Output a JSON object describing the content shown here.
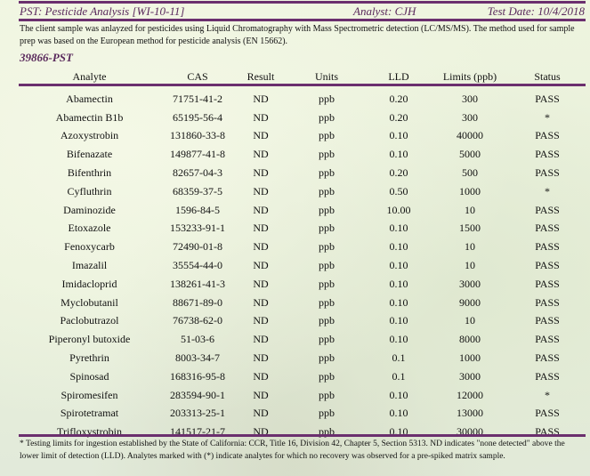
{
  "header": {
    "title": "PST: Pesticide Analysis [WI-10-11]",
    "analyst": "Analyst: CJH",
    "test_date": "Test Date: 10/4/2018"
  },
  "description": "The client sample was anlayzed for pesticides using Liquid Chromatography with Mass Spectrometric detection (LC/MS/MS).  The method used for sample prep was based on the European method for pesticide analysis (EN 15662).",
  "sample_id": "39866-PST",
  "columns": [
    "Analyte",
    "CAS",
    "Result",
    "Units",
    "LLD",
    "Limits (ppb)",
    "Status"
  ],
  "rows": [
    [
      "Abamectin",
      "71751-41-2",
      "ND",
      "ppb",
      "0.20",
      "300",
      "PASS"
    ],
    [
      "Abamectin B1b",
      "65195-56-4",
      "ND",
      "ppb",
      "0.20",
      "300",
      "*"
    ],
    [
      "Azoxystrobin",
      "131860-33-8",
      "ND",
      "ppb",
      "0.10",
      "40000",
      "PASS"
    ],
    [
      "Bifenazate",
      "149877-41-8",
      "ND",
      "ppb",
      "0.10",
      "5000",
      "PASS"
    ],
    [
      "Bifenthrin",
      "82657-04-3",
      "ND",
      "ppb",
      "0.20",
      "500",
      "PASS"
    ],
    [
      "Cyfluthrin",
      "68359-37-5",
      "ND",
      "ppb",
      "0.50",
      "1000",
      "*"
    ],
    [
      "Daminozide",
      "1596-84-5",
      "ND",
      "ppb",
      "10.00",
      "10",
      "PASS"
    ],
    [
      "Etoxazole",
      "153233-91-1",
      "ND",
      "ppb",
      "0.10",
      "1500",
      "PASS"
    ],
    [
      "Fenoxycarb",
      "72490-01-8",
      "ND",
      "ppb",
      "0.10",
      "10",
      "PASS"
    ],
    [
      "Imazalil",
      "35554-44-0",
      "ND",
      "ppb",
      "0.10",
      "10",
      "PASS"
    ],
    [
      "Imidacloprid",
      "138261-41-3",
      "ND",
      "ppb",
      "0.10",
      "3000",
      "PASS"
    ],
    [
      "Myclobutanil",
      "88671-89-0",
      "ND",
      "ppb",
      "0.10",
      "9000",
      "PASS"
    ],
    [
      "Paclobutrazol",
      "76738-62-0",
      "ND",
      "ppb",
      "0.10",
      "10",
      "PASS"
    ],
    [
      "Piperonyl butoxide",
      "51-03-6",
      "ND",
      "ppb",
      "0.10",
      "8000",
      "PASS"
    ],
    [
      "Pyrethrin",
      "8003-34-7",
      "ND",
      "ppb",
      "0.1",
      "1000",
      "PASS"
    ],
    [
      "Spinosad",
      "168316-95-8",
      "ND",
      "ppb",
      "0.1",
      "3000",
      "PASS"
    ],
    [
      "Spiromesifen",
      "283594-90-1",
      "ND",
      "ppb",
      "0.10",
      "12000",
      "*"
    ],
    [
      "Spirotetramat",
      "203313-25-1",
      "ND",
      "ppb",
      "0.10",
      "13000",
      "PASS"
    ],
    [
      "Trifloxystrobin",
      "141517-21-7",
      "ND",
      "ppb",
      "0.10",
      "30000",
      "PASS"
    ]
  ],
  "footnote": "* Testing limits for ingestion established by the State of California:  CCR, Title 16, Division 42, Chapter 5, Section 5313.  ND indicates \"none detected\" above the lower limit of detection (LLD).  Analytes marked with (*) indicate analytes for which no recovery was observed for a pre-spiked matrix sample.",
  "colors": {
    "accent": "#6b2f6e",
    "background": "#e8f0da"
  }
}
